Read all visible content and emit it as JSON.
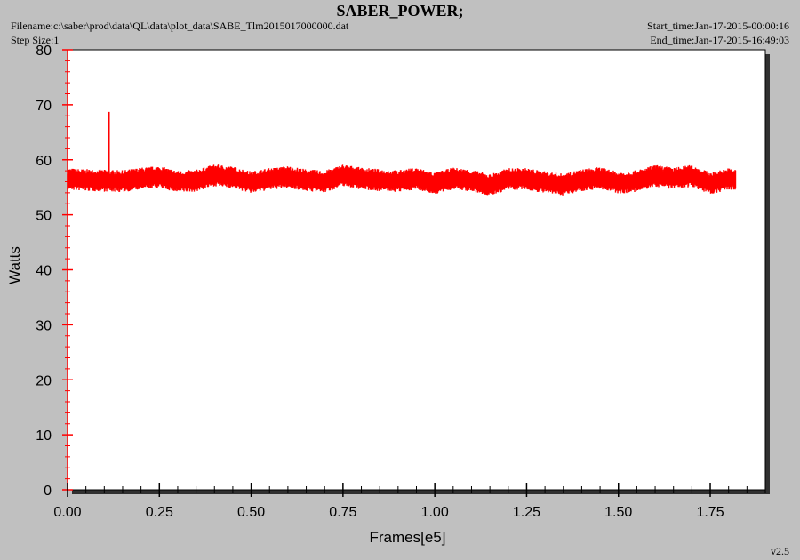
{
  "header": {
    "title": "SABER_POWER;",
    "filename": "Filename:c:\\saber\\prod\\data\\QL\\data\\plot_data\\SABE_Tlm2015017000000.dat",
    "step_size": "Step Size:1",
    "start_time": "Start_time:Jan-17-2015-00:00:16",
    "end_time": "End_time:Jan-17-2015-16:49:03",
    "version": "v2.5"
  },
  "colors": {
    "background": "#c0c0c0",
    "plot_area": "#ffffff",
    "series": "#ff0000",
    "axis": "#000000",
    "shadow": "#303030"
  },
  "chart_data": {
    "type": "line",
    "title": "SABER_POWER;",
    "xlabel": "Frames[e5]",
    "ylabel": "Watts",
    "xlim": [
      0,
      1.9
    ],
    "ylim": [
      0,
      80
    ],
    "x_ticks": [
      "0.00",
      "0.25",
      "0.50",
      "0.75",
      "1.00",
      "1.25",
      "1.50",
      "1.75"
    ],
    "y_ticks": [
      "0",
      "10",
      "20",
      "30",
      "40",
      "50",
      "60",
      "70",
      "80"
    ],
    "grid": false,
    "legend": "none",
    "series": [
      {
        "color": "#ff0000",
        "x": [
          0.0,
          0.05,
          0.1,
          0.112,
          0.15,
          0.2,
          0.25,
          0.3,
          0.35,
          0.4,
          0.45,
          0.5,
          0.55,
          0.6,
          0.65,
          0.7,
          0.75,
          0.8,
          0.85,
          0.9,
          0.95,
          1.0,
          1.05,
          1.1,
          1.15,
          1.2,
          1.25,
          1.3,
          1.35,
          1.4,
          1.45,
          1.5,
          1.55,
          1.6,
          1.65,
          1.7,
          1.75,
          1.8,
          1.82
        ],
        "y": [
          56.5,
          56.3,
          56.2,
          68.7,
          56.1,
          56.6,
          56.9,
          56.0,
          56.2,
          57.2,
          56.8,
          55.9,
          56.5,
          56.9,
          56.3,
          56.0,
          57.2,
          56.6,
          56.3,
          56.1,
          56.6,
          55.7,
          56.6,
          56.2,
          55.4,
          56.5,
          56.5,
          55.9,
          55.5,
          56.3,
          56.7,
          55.8,
          56.1,
          57.1,
          56.6,
          57.1,
          55.7,
          56.5,
          56.4
        ],
        "band_half_width": 2.0
      }
    ]
  }
}
